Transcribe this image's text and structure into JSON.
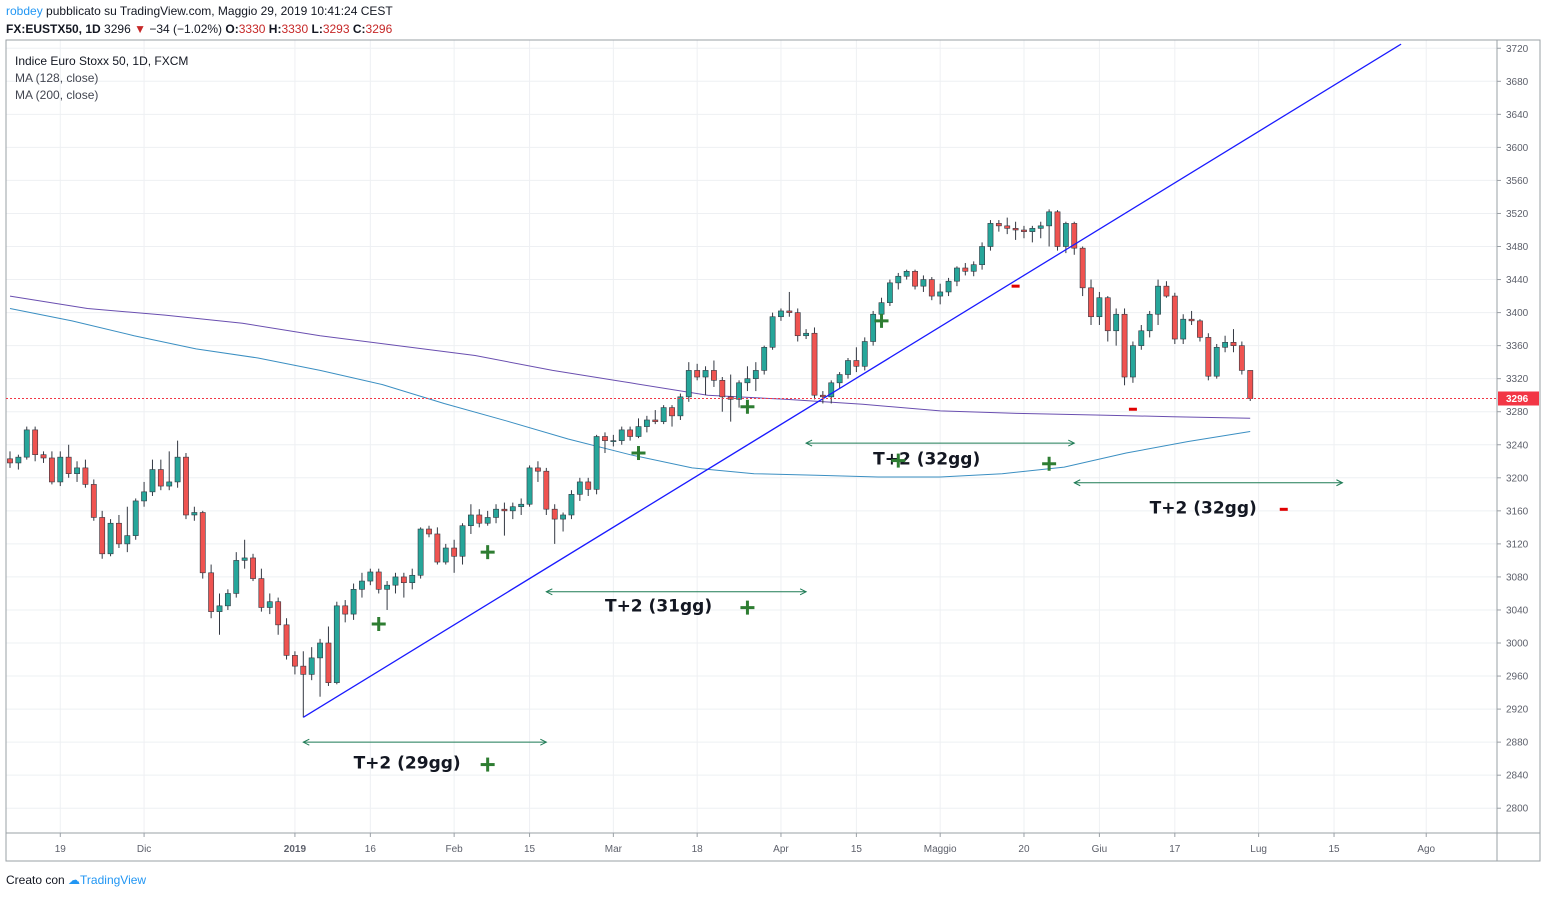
{
  "header": {
    "user": "robdey",
    "published": "pubblicato su TradingView.com, Maggio 29, 2019 10:41:24 CEST",
    "symbol_line": "FX:EUSTX50, 1D",
    "last": "3296",
    "change": "−34 (−1.02%)",
    "open_label": "O:",
    "open": "3330",
    "high_label": "H:",
    "high": "3330",
    "low_label": "L:",
    "low": "3293",
    "close_label": "C:",
    "close": "3296"
  },
  "legend": {
    "title": "Indice Euro Stoxx 50, 1D, FXCM",
    "ma1": "MA (128, close)",
    "ma2": "MA (200, close)"
  },
  "footer": {
    "created_with": "Creato con",
    "brand": "TradingView"
  },
  "colors": {
    "up": "#26a69a",
    "down": "#ef5350",
    "trend": "#1a1aff",
    "ma128": "#6a4fb0",
    "ma200": "#3b8fc2",
    "price": "#f23645",
    "plus": "#2e7d32",
    "minus": "#e00000"
  },
  "chart_data": {
    "type": "candlestick",
    "title": "Indice Euro Stoxx 50, 1D, FXCM",
    "ylim": [
      2770,
      3730
    ],
    "y_ticks": [
      2800,
      2840,
      2880,
      2920,
      2960,
      3000,
      3040,
      3080,
      3120,
      3160,
      3200,
      3240,
      3280,
      3320,
      3360,
      3400,
      3440,
      3480,
      3520,
      3560,
      3600,
      3640,
      3680,
      3720
    ],
    "x_ticks": [
      "19",
      "Dic",
      "2019",
      "16",
      "Feb",
      "15",
      "Mar",
      "18",
      "Apr",
      "15",
      "Maggio",
      "20",
      "Giu",
      "17",
      "Lug",
      "15",
      "Ago"
    ],
    "x_tick_bar": [
      6,
      16,
      34,
      43,
      53,
      62,
      72,
      82,
      92,
      101,
      111,
      121,
      130,
      139,
      149,
      158,
      169
    ],
    "last_price": 3296,
    "candles": [
      [
        3223,
        3232,
        3212,
        3218
      ],
      [
        3218,
        3228,
        3210,
        3225
      ],
      [
        3225,
        3262,
        3222,
        3258
      ],
      [
        3258,
        3262,
        3220,
        3228
      ],
      [
        3228,
        3232,
        3218,
        3224
      ],
      [
        3224,
        3232,
        3192,
        3195
      ],
      [
        3195,
        3232,
        3190,
        3225
      ],
      [
        3225,
        3240,
        3200,
        3205
      ],
      [
        3205,
        3220,
        3195,
        3212
      ],
      [
        3212,
        3222,
        3188,
        3192
      ],
      [
        3192,
        3198,
        3148,
        3152
      ],
      [
        3152,
        3160,
        3102,
        3108
      ],
      [
        3108,
        3150,
        3105,
        3145
      ],
      [
        3145,
        3155,
        3115,
        3120
      ],
      [
        3120,
        3165,
        3110,
        3130
      ],
      [
        3130,
        3175,
        3125,
        3172
      ],
      [
        3172,
        3195,
        3165,
        3183
      ],
      [
        3183,
        3222,
        3178,
        3210
      ],
      [
        3210,
        3222,
        3185,
        3190
      ],
      [
        3190,
        3232,
        3185,
        3195
      ],
      [
        3195,
        3245,
        3188,
        3225
      ],
      [
        3225,
        3230,
        3150,
        3155
      ],
      [
        3155,
        3165,
        3148,
        3158
      ],
      [
        3158,
        3160,
        3078,
        3085
      ],
      [
        3085,
        3095,
        3030,
        3038
      ],
      [
        3038,
        3060,
        3010,
        3045
      ],
      [
        3045,
        3065,
        3040,
        3060
      ],
      [
        3060,
        3110,
        3055,
        3100
      ],
      [
        3100,
        3125,
        3090,
        3103
      ],
      [
        3103,
        3108,
        3075,
        3078
      ],
      [
        3078,
        3090,
        3038,
        3043
      ],
      [
        3043,
        3060,
        3035,
        3050
      ],
      [
        3050,
        3055,
        3010,
        3022
      ],
      [
        3022,
        3030,
        2980,
        2985
      ],
      [
        2985,
        2990,
        2962,
        2972
      ],
      [
        2972,
        2990,
        2910,
        2962
      ],
      [
        2962,
        2995,
        2955,
        2982
      ],
      [
        2982,
        3005,
        2935,
        3000
      ],
      [
        3000,
        3020,
        2948,
        2952
      ],
      [
        2952,
        3050,
        2950,
        3045
      ],
      [
        3045,
        3052,
        3025,
        3035
      ],
      [
        3035,
        3072,
        3028,
        3065
      ],
      [
        3065,
        3085,
        3055,
        3075
      ],
      [
        3075,
        3090,
        3070,
        3086
      ],
      [
        3086,
        3090,
        3060,
        3065
      ],
      [
        3065,
        3075,
        3040,
        3070
      ],
      [
        3070,
        3085,
        3060,
        3080
      ],
      [
        3080,
        3085,
        3055,
        3073
      ],
      [
        3073,
        3090,
        3065,
        3082
      ],
      [
        3082,
        3140,
        3078,
        3138
      ],
      [
        3138,
        3142,
        3128,
        3132
      ],
      [
        3132,
        3140,
        3095,
        3098
      ],
      [
        3098,
        3120,
        3095,
        3115
      ],
      [
        3115,
        3125,
        3085,
        3105
      ],
      [
        3105,
        3145,
        3095,
        3142
      ],
      [
        3142,
        3168,
        3132,
        3155
      ],
      [
        3155,
        3162,
        3140,
        3145
      ],
      [
        3145,
        3160,
        3142,
        3152
      ],
      [
        3152,
        3168,
        3145,
        3162
      ],
      [
        3162,
        3170,
        3130,
        3160
      ],
      [
        3160,
        3170,
        3150,
        3165
      ],
      [
        3165,
        3175,
        3155,
        3168
      ],
      [
        3168,
        3215,
        3165,
        3212
      ],
      [
        3212,
        3220,
        3195,
        3208
      ],
      [
        3208,
        3212,
        3155,
        3162
      ],
      [
        3162,
        3168,
        3120,
        3150
      ],
      [
        3150,
        3158,
        3135,
        3155
      ],
      [
        3155,
        3185,
        3150,
        3180
      ],
      [
        3180,
        3200,
        3172,
        3195
      ],
      [
        3195,
        3200,
        3178,
        3186
      ],
      [
        3186,
        3252,
        3180,
        3250
      ],
      [
        3250,
        3255,
        3230,
        3245
      ],
      [
        3245,
        3252,
        3238,
        3245
      ],
      [
        3245,
        3262,
        3240,
        3258
      ],
      [
        3258,
        3262,
        3245,
        3250
      ],
      [
        3250,
        3272,
        3248,
        3262
      ],
      [
        3262,
        3275,
        3255,
        3270
      ],
      [
        3270,
        3282,
        3265,
        3268
      ],
      [
        3268,
        3288,
        3265,
        3285
      ],
      [
        3285,
        3288,
        3262,
        3275
      ],
      [
        3275,
        3302,
        3270,
        3298
      ],
      [
        3298,
        3340,
        3292,
        3330
      ],
      [
        3330,
        3338,
        3318,
        3322
      ],
      [
        3322,
        3335,
        3300,
        3330
      ],
      [
        3330,
        3342,
        3310,
        3318
      ],
      [
        3318,
        3322,
        3280,
        3298
      ],
      [
        3298,
        3325,
        3268,
        3295
      ],
      [
        3295,
        3318,
        3285,
        3315
      ],
      [
        3315,
        3335,
        3305,
        3320
      ],
      [
        3320,
        3340,
        3305,
        3330
      ],
      [
        3330,
        3360,
        3325,
        3358
      ],
      [
        3358,
        3400,
        3355,
        3395
      ],
      [
        3395,
        3405,
        3390,
        3402
      ],
      [
        3402,
        3425,
        3395,
        3400
      ],
      [
        3400,
        3405,
        3365,
        3372
      ],
      [
        3372,
        3380,
        3368,
        3375
      ],
      [
        3375,
        3382,
        3295,
        3300
      ],
      [
        3300,
        3305,
        3290,
        3298
      ],
      [
        3298,
        3318,
        3290,
        3315
      ],
      [
        3315,
        3328,
        3308,
        3325
      ],
      [
        3325,
        3345,
        3320,
        3342
      ],
      [
        3342,
        3358,
        3328,
        3335
      ],
      [
        3335,
        3370,
        3330,
        3365
      ],
      [
        3365,
        3402,
        3360,
        3398
      ],
      [
        3398,
        3418,
        3390,
        3412
      ],
      [
        3412,
        3440,
        3408,
        3436
      ],
      [
        3436,
        3448,
        3428,
        3444
      ],
      [
        3444,
        3452,
        3440,
        3450
      ],
      [
        3450,
        3452,
        3428,
        3432
      ],
      [
        3432,
        3445,
        3425,
        3440
      ],
      [
        3440,
        3443,
        3415,
        3420
      ],
      [
        3420,
        3435,
        3410,
        3425
      ],
      [
        3425,
        3442,
        3420,
        3438
      ],
      [
        3438,
        3456,
        3432,
        3454
      ],
      [
        3454,
        3460,
        3445,
        3450
      ],
      [
        3450,
        3462,
        3444,
        3458
      ],
      [
        3458,
        3485,
        3452,
        3480
      ],
      [
        3480,
        3512,
        3475,
        3508
      ],
      [
        3508,
        3512,
        3498,
        3505
      ],
      [
        3505,
        3515,
        3495,
        3502
      ],
      [
        3502,
        3510,
        3488,
        3500
      ],
      [
        3500,
        3505,
        3490,
        3498
      ],
      [
        3498,
        3505,
        3485,
        3502
      ],
      [
        3502,
        3510,
        3490,
        3505
      ],
      [
        3505,
        3525,
        3480,
        3522
      ],
      [
        3522,
        3524,
        3475,
        3480
      ],
      [
        3480,
        3510,
        3472,
        3508
      ],
      [
        3508,
        3510,
        3470,
        3478
      ],
      [
        3478,
        3480,
        3420,
        3430
      ],
      [
        3430,
        3440,
        3385,
        3395
      ],
      [
        3395,
        3425,
        3385,
        3418
      ],
      [
        3418,
        3420,
        3365,
        3378
      ],
      [
        3378,
        3405,
        3360,
        3398
      ],
      [
        3398,
        3405,
        3312,
        3322
      ],
      [
        3322,
        3365,
        3315,
        3360
      ],
      [
        3360,
        3385,
        3355,
        3378
      ],
      [
        3378,
        3402,
        3370,
        3398
      ],
      [
        3398,
        3440,
        3385,
        3432
      ],
      [
        3432,
        3438,
        3418,
        3420
      ],
      [
        3420,
        3424,
        3362,
        3368
      ],
      [
        3368,
        3398,
        3362,
        3392
      ],
      [
        3392,
        3402,
        3385,
        3390
      ],
      [
        3390,
        3392,
        3365,
        3370
      ],
      [
        3370,
        3375,
        3318,
        3323
      ],
      [
        3323,
        3362,
        3320,
        3358
      ],
      [
        3358,
        3372,
        3352,
        3364
      ],
      [
        3364,
        3380,
        3352,
        3360
      ],
      [
        3360,
        3365,
        3325,
        3330
      ],
      [
        3330,
        3330,
        3293,
        3296
      ]
    ],
    "ma128": [
      3420,
      3405,
      3397,
      3387,
      3372,
      3360,
      3348,
      3330,
      3315,
      3300,
      3295,
      3289,
      3281,
      3278,
      3276,
      3274,
      3272
    ],
    "ma200": [
      3405,
      3390,
      3372,
      3356,
      3345,
      3330,
      3313,
      3290,
      3269,
      3247,
      3228,
      3212,
      3205,
      3203,
      3201,
      3201,
      3205,
      3213,
      3230,
      3244,
      3256
    ],
    "annotations": {
      "spans": [
        {
          "label": "T+2 (29gg)",
          "from": 35,
          "to": 64,
          "sign": "+"
        },
        {
          "label": "T+2 (31gg)",
          "from": 64,
          "to": 95,
          "sign": "+"
        },
        {
          "label": "T+2 (32gg)",
          "from": 95,
          "to": 127,
          "sign": "+"
        },
        {
          "label": "T+2 (32gg)",
          "from": 127,
          "to": 159,
          "sign": "-"
        }
      ],
      "markers": [
        {
          "sign": "+",
          "bar": 44,
          "price": 3023
        },
        {
          "sign": "+",
          "bar": 57,
          "price": 3110
        },
        {
          "sign": "+",
          "bar": 75,
          "price": 3230
        },
        {
          "sign": "+",
          "bar": 88,
          "price": 3286
        },
        {
          "sign": "+",
          "bar": 104,
          "price": 3390
        },
        {
          "sign": "-",
          "bar": 120,
          "price": 3432
        },
        {
          "sign": "+",
          "bar": 124,
          "price": 3217
        },
        {
          "sign": "-",
          "bar": 134,
          "price": 3283
        }
      ],
      "trendline": {
        "from": [
          35,
          2910
        ],
        "to": [
          166,
          3725
        ]
      }
    }
  }
}
